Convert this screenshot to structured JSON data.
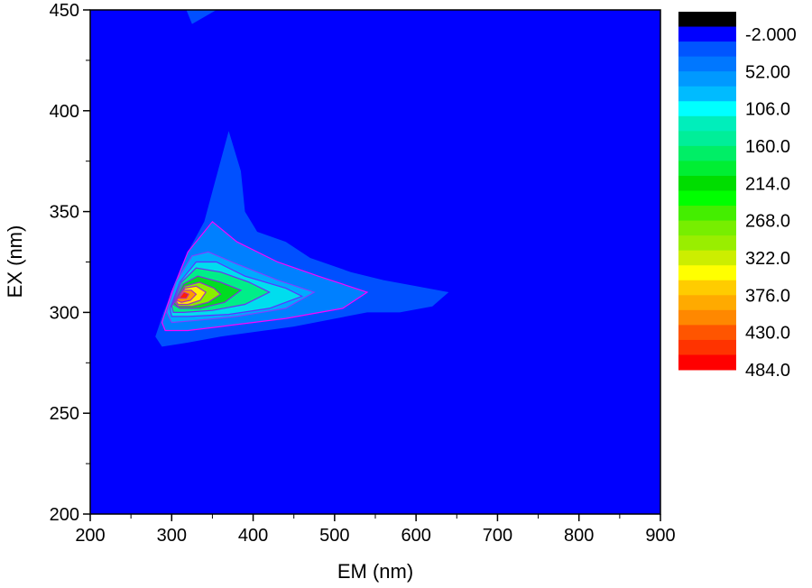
{
  "chart_data": {
    "type": "contour",
    "xlabel": "EM (nm)",
    "ylabel": "EX (nm)",
    "xlim": [
      200,
      900
    ],
    "ylim": [
      200,
      450
    ],
    "xticks": [
      200,
      300,
      400,
      500,
      600,
      700,
      800,
      900
    ],
    "yticks": [
      200,
      250,
      300,
      350,
      400,
      450
    ],
    "grid": false,
    "legend": "right",
    "colorbar": {
      "label_values": [
        "-2.000",
        "52.00",
        "106.0",
        "160.0",
        "214.0",
        "268.0",
        "322.0",
        "376.0",
        "430.0",
        "484.0"
      ],
      "colors": [
        "#000000",
        "#0000ff",
        "#0055ff",
        "#0077ff",
        "#0099ff",
        "#00bbff",
        "#00ffff",
        "#00eebb",
        "#00ee99",
        "#00ee66",
        "#00ee33",
        "#00dd00",
        "#00ff00",
        "#44ee00",
        "#77ee00",
        "#99ee00",
        "#ccee00",
        "#ffff00",
        "#ffcc00",
        "#ffaa00",
        "#ff8800",
        "#ff5500",
        "#ff3300",
        "#ff0000"
      ]
    },
    "contour_levels": [
      {
        "level": 25,
        "color": "#0050ff",
        "line": null,
        "points": [
          [
            280,
            288
          ],
          [
            290,
            300
          ],
          [
            320,
            330
          ],
          [
            340,
            345
          ],
          [
            350,
            360
          ],
          [
            370,
            390
          ],
          [
            385,
            370
          ],
          [
            390,
            350
          ],
          [
            405,
            340
          ],
          [
            440,
            335
          ],
          [
            470,
            327
          ],
          [
            520,
            320
          ],
          [
            560,
            316
          ],
          [
            600,
            313
          ],
          [
            640,
            310
          ],
          [
            620,
            303
          ],
          [
            580,
            300
          ],
          [
            540,
            300
          ],
          [
            450,
            293
          ],
          [
            360,
            288
          ],
          [
            320,
            285
          ],
          [
            288,
            283
          ]
        ]
      },
      {
        "level": 40,
        "color": "#0080ff",
        "line": "#ff00ff",
        "points": [
          [
            288,
            295
          ],
          [
            300,
            310
          ],
          [
            320,
            330
          ],
          [
            340,
            340
          ],
          [
            350,
            345
          ],
          [
            380,
            335
          ],
          [
            430,
            325
          ],
          [
            480,
            318
          ],
          [
            540,
            310
          ],
          [
            510,
            302
          ],
          [
            440,
            297
          ],
          [
            360,
            293
          ],
          [
            320,
            291
          ],
          [
            292,
            291
          ]
        ]
      },
      {
        "level": 80,
        "color": "#00aaff",
        "line": "#8040ff",
        "points": [
          [
            294,
            300
          ],
          [
            305,
            315
          ],
          [
            325,
            328
          ],
          [
            345,
            330
          ],
          [
            380,
            324
          ],
          [
            430,
            316
          ],
          [
            475,
            310
          ],
          [
            440,
            302
          ],
          [
            380,
            298
          ],
          [
            330,
            296
          ],
          [
            300,
            295
          ]
        ]
      },
      {
        "level": 120,
        "color": "#00ddee",
        "line": "#6030ff",
        "points": [
          [
            298,
            302
          ],
          [
            310,
            315
          ],
          [
            330,
            325
          ],
          [
            355,
            325
          ],
          [
            390,
            318
          ],
          [
            440,
            312
          ],
          [
            460,
            308
          ],
          [
            420,
            302
          ],
          [
            370,
            299
          ],
          [
            320,
            298
          ],
          [
            300,
            298
          ]
        ]
      },
      {
        "level": 180,
        "color": "#00ee88",
        "line": "#7030f0",
        "points": [
          [
            300,
            303
          ],
          [
            312,
            315
          ],
          [
            330,
            322
          ],
          [
            360,
            320
          ],
          [
            395,
            315
          ],
          [
            420,
            310
          ],
          [
            390,
            304
          ],
          [
            350,
            301
          ],
          [
            315,
            300
          ],
          [
            302,
            300
          ]
        ]
      },
      {
        "level": 240,
        "color": "#00dd22",
        "line": "#8030e0",
        "points": [
          [
            302,
            304
          ],
          [
            314,
            314
          ],
          [
            332,
            318
          ],
          [
            360,
            315
          ],
          [
            385,
            311
          ],
          [
            365,
            305
          ],
          [
            335,
            302
          ],
          [
            310,
            302
          ]
        ]
      },
      {
        "level": 300,
        "color": "#88ee00",
        "line": "#9030d0",
        "points": [
          [
            304,
            305
          ],
          [
            316,
            313
          ],
          [
            334,
            315
          ],
          [
            352,
            312
          ],
          [
            360,
            309
          ],
          [
            345,
            305
          ],
          [
            325,
            303
          ],
          [
            308,
            303
          ]
        ]
      },
      {
        "level": 360,
        "color": "#ffee00",
        "line": "#a030c0",
        "points": [
          [
            305,
            306
          ],
          [
            316,
            312
          ],
          [
            330,
            313
          ],
          [
            342,
            310
          ],
          [
            335,
            306
          ],
          [
            320,
            304
          ],
          [
            308,
            304
          ]
        ]
      },
      {
        "level": 420,
        "color": "#ff9900",
        "line": "#b030b0",
        "points": [
          [
            306,
            306
          ],
          [
            314,
            311
          ],
          [
            324,
            311
          ],
          [
            330,
            309
          ],
          [
            323,
            306
          ],
          [
            312,
            305
          ]
        ]
      },
      {
        "level": 470,
        "color": "#ff2000",
        "line": "#c030a0",
        "points": [
          [
            309,
            307
          ],
          [
            315,
            310
          ],
          [
            321,
            309
          ],
          [
            318,
            307
          ]
        ]
      }
    ],
    "background_level_color": "#0000ff"
  }
}
